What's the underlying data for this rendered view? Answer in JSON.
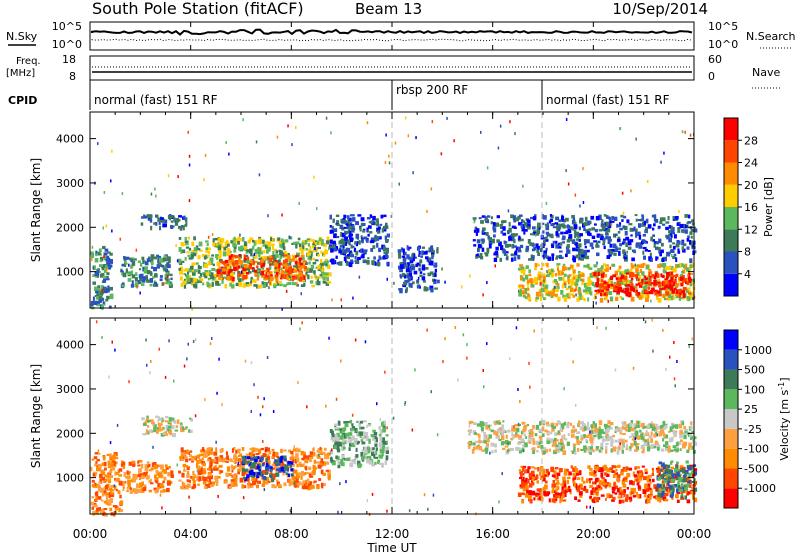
{
  "header": {
    "station": "South Pole Station (fitACF)",
    "beam": "Beam 13",
    "date": "10/Sep/2014"
  },
  "status_panel": {
    "nsky_label": "N.Sky",
    "nsky_ticks": [
      "10^5",
      "10^0"
    ],
    "nsearch_label": "N.Search",
    "freq_label": "Freq.",
    "freq_unit": "[MHz]",
    "freq_ticks": [
      "18",
      "8"
    ],
    "nave_ticks": [
      "60",
      "0"
    ],
    "nave_label": "Nave",
    "cpid_label": "CPID",
    "cpid_segments": [
      {
        "start_ut": 0,
        "label": "normal (fast) 151 RF"
      },
      {
        "start_ut": 12,
        "label": "rbsp 200 RF"
      },
      {
        "start_ut": 18,
        "label": "normal (fast) 151 RF"
      }
    ]
  },
  "power_colorbar": {
    "label": "Power [dB]",
    "ticks": [
      "4",
      "8",
      "12",
      "16",
      "20",
      "24",
      "28"
    ],
    "colors": [
      "#0000ff",
      "#2a52be",
      "#3c7a5a",
      "#5cb85c",
      "#ffcc00",
      "#ff8c00",
      "#ff4500",
      "#ff0000"
    ]
  },
  "velocity_colorbar": {
    "label": "Velocity [m s",
    "label_exp": "-1",
    "label_close": "]",
    "ticks": [
      "-1000",
      "-500",
      "-100",
      "-25",
      "25",
      "100",
      "500",
      "1000"
    ],
    "colors": [
      "#ff0000",
      "#ff4500",
      "#ff8c00",
      "#ffa040",
      "#c8c8c8",
      "#5cb85c",
      "#3c7a5a",
      "#2a52be",
      "#0000ff"
    ]
  },
  "chart_data": [
    {
      "type": "heatmap",
      "ylabel": "Slant Range [km]",
      "x_ticks": [
        "00:00",
        "04:00",
        "08:00",
        "12:00",
        "16:00",
        "20:00",
        "00:00"
      ],
      "xlim": [
        0,
        24
      ],
      "ylim": [
        180,
        4600
      ],
      "y_ticks": [
        1000,
        2000,
        3000,
        4000
      ],
      "regions": [
        {
          "ut_start": 0.0,
          "ut_end": 0.8,
          "range_min": 200,
          "range_max": 1600,
          "level": 2
        },
        {
          "ut_start": 1.2,
          "ut_end": 3.2,
          "range_min": 700,
          "range_max": 1400,
          "level": 2
        },
        {
          "ut_start": 2.0,
          "ut_end": 3.8,
          "range_min": 2000,
          "range_max": 2300,
          "level": 1
        },
        {
          "ut_start": 3.5,
          "ut_end": 9.5,
          "range_min": 700,
          "range_max": 1800,
          "level": 3
        },
        {
          "ut_start": 5.0,
          "ut_end": 8.5,
          "range_min": 850,
          "range_max": 1400,
          "level": 6
        },
        {
          "ut_start": 9.5,
          "ut_end": 11.8,
          "range_min": 1200,
          "range_max": 2300,
          "level": 1
        },
        {
          "ut_start": 12.2,
          "ut_end": 13.8,
          "range_min": 600,
          "range_max": 1600,
          "level": 1
        },
        {
          "ut_start": 15.2,
          "ut_end": 24.0,
          "range_min": 1300,
          "range_max": 2300,
          "level": 1
        },
        {
          "ut_start": 17.0,
          "ut_end": 24.0,
          "range_min": 400,
          "range_max": 1200,
          "level": 4
        },
        {
          "ut_start": 20.0,
          "ut_end": 23.8,
          "range_min": 500,
          "range_max": 1000,
          "level": 7
        }
      ]
    },
    {
      "type": "heatmap",
      "xlabel": "Time UT",
      "ylabel": "Slant Range [km]",
      "x_ticks": [
        "00:00",
        "04:00",
        "08:00",
        "12:00",
        "16:00",
        "20:00",
        "00:00"
      ],
      "xlim": [
        0,
        24
      ],
      "ylim": [
        180,
        4600
      ],
      "y_ticks": [
        1000,
        2000,
        3000,
        4000
      ],
      "regions": [
        {
          "ut_start": 0.0,
          "ut_end": 1.2,
          "range_min": 200,
          "range_max": 1600,
          "level": 2
        },
        {
          "ut_start": 1.2,
          "ut_end": 3.2,
          "range_min": 700,
          "range_max": 1400,
          "level": 2
        },
        {
          "ut_start": 2.0,
          "ut_end": 4.0,
          "range_min": 2000,
          "range_max": 2400,
          "level": 4
        },
        {
          "ut_start": 3.5,
          "ut_end": 9.5,
          "range_min": 800,
          "range_max": 1700,
          "level": 2
        },
        {
          "ut_start": 6.0,
          "ut_end": 8.0,
          "range_min": 1000,
          "range_max": 1500,
          "level": 7
        },
        {
          "ut_start": 9.5,
          "ut_end": 11.8,
          "range_min": 1300,
          "range_max": 2300,
          "level": 5
        },
        {
          "ut_start": 15.0,
          "ut_end": 24.0,
          "range_min": 1600,
          "range_max": 2300,
          "level": 4
        },
        {
          "ut_start": 17.0,
          "ut_end": 24.0,
          "range_min": 500,
          "range_max": 1300,
          "level": 1
        },
        {
          "ut_start": 22.5,
          "ut_end": 24.0,
          "range_min": 600,
          "range_max": 1400,
          "level": 6
        }
      ]
    }
  ]
}
